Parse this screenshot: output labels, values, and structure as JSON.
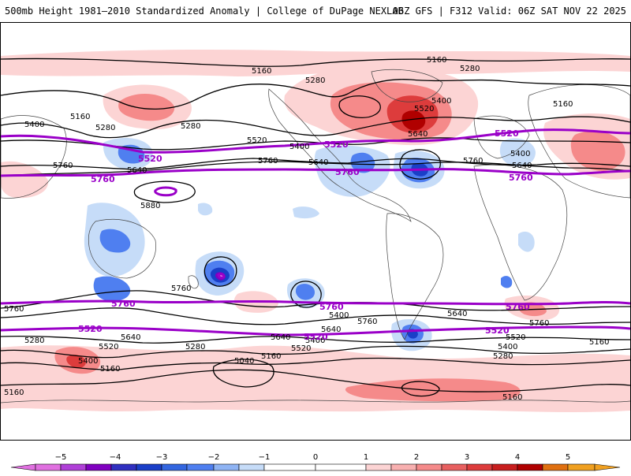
{
  "header": {
    "title_left": "500mb Height 1981–2010 Standardized Anomaly | College of DuPage NEXLAB",
    "title_right": "06Z GFS | F312 Valid: 06Z SAT NOV 22 2025"
  },
  "colors": {
    "neg5": "#e070e0",
    "neg4": "#8000c0",
    "neg3": "#1a3fc8",
    "neg2": "#4f7ff0",
    "neg1": "#c6dcf8",
    "pos1": "#fcd4d4",
    "pos2": "#f58a8a",
    "pos3": "#dd3c3c",
    "pos4": "#b00000",
    "pos5": "#f0a020",
    "contour_black": "#000000",
    "contour_purple": "#9a00c8"
  },
  "contour_labels": {
    "l5160_a": "5160",
    "l5160_b": "5160",
    "l5160_c": "5160",
    "l5160_d": "5160",
    "l5160_e": "5160",
    "l5160_f": "5160",
    "l5160_g": "5160",
    "l5280_a": "5280",
    "l5280_b": "5280",
    "l5280_c": "5280",
    "l5280_d": "5280",
    "l5280_e": "5280",
    "l5280_f": "5280",
    "l5280_g": "5280",
    "l5400_a": "5400",
    "l5400_b": "5400",
    "l5400_c": "5400",
    "l5400_d": "5400",
    "l5400_e": "5400",
    "l5400_f": "5400",
    "l5400_g": "5400",
    "l5400_h": "5400",
    "l5520_a": "5520",
    "l5520_b": "5520",
    "l5520_c": "5520",
    "l5520_d": "5520",
    "l5520_e": "5520",
    "l5520_f": "5520",
    "l5520_g": "5520",
    "l5520_h": "5520",
    "l5520_i": "5520",
    "l5520_j": "5520",
    "l5520_k": "5520",
    "l5640_a": "5640",
    "l5640_b": "5640",
    "l5640_c": "5640",
    "l5640_d": "5640",
    "l5640_e": "5640",
    "l5640_f": "5640",
    "l5640_g": "5640",
    "l5640_h": "5640",
    "l5760_a": "5760",
    "l5760_b": "5760",
    "l5760_c": "5760",
    "l5760_d": "5760",
    "l5760_e": "5760",
    "l5760_f": "5760",
    "l5760_g": "5760",
    "l5760_h": "5760",
    "l5760_i": "5760",
    "l5760_j": "5760",
    "l5760_k": "5760",
    "l5760_l": "5760",
    "l5880": "5880",
    "l5040": "5040"
  },
  "colorbar": {
    "ticks": [
      "−5",
      "−4",
      "−3",
      "−2",
      "−1",
      "0",
      "1",
      "2",
      "3",
      "4",
      "5"
    ]
  }
}
